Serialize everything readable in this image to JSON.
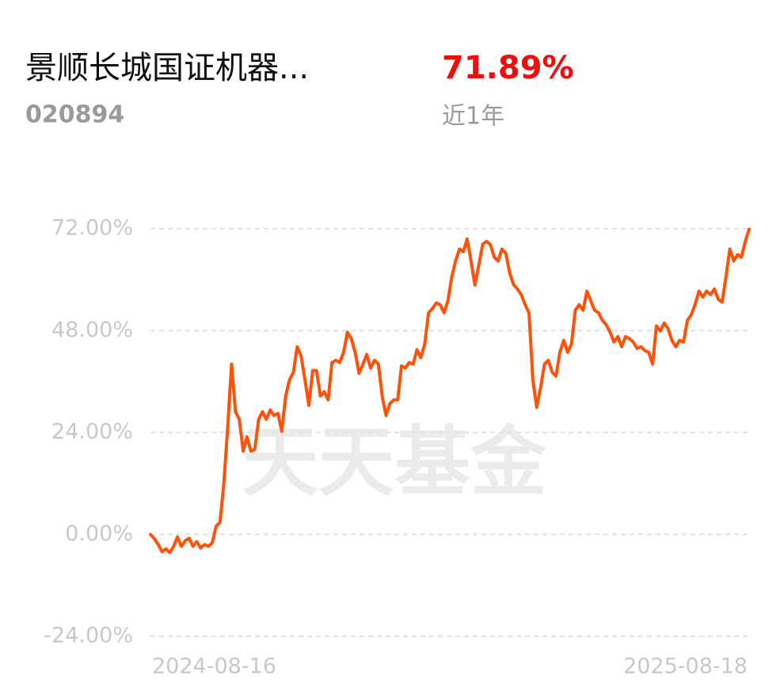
{
  "header": {
    "title": "景顺长城国证机器...",
    "code": "020894",
    "return": "71.89%",
    "period": "近1年"
  },
  "watermark": "天天基金",
  "chart_data": {
    "type": "line",
    "categories": [
      "2024-08-16",
      null,
      null,
      null,
      null,
      null,
      null,
      null,
      null,
      null,
      null,
      null,
      null,
      null,
      null,
      null,
      null,
      null,
      null,
      null,
      null,
      null,
      null,
      null,
      null,
      null,
      null,
      null,
      null,
      null,
      null,
      null,
      null,
      null,
      null,
      null,
      null,
      null,
      null,
      null,
      null,
      null,
      null,
      null,
      null,
      null,
      null,
      null,
      null,
      null,
      null,
      null,
      null,
      null,
      null,
      null,
      null,
      null,
      null,
      null,
      null,
      null,
      null,
      null,
      null,
      null,
      null,
      null,
      null,
      null,
      null,
      null,
      null,
      null,
      null,
      null,
      null,
      null,
      null,
      null,
      null,
      null,
      null,
      null,
      null,
      null,
      null,
      null,
      null,
      null,
      null,
      null,
      null,
      null,
      null,
      null,
      null,
      null,
      null,
      null,
      null,
      null,
      null,
      null,
      null,
      null,
      null,
      null,
      null,
      null,
      null,
      null,
      null,
      null,
      null,
      null,
      null,
      null,
      null,
      null,
      null,
      null,
      null,
      null,
      null,
      null,
      null,
      null,
      null,
      null,
      null,
      null,
      null,
      null,
      null,
      null,
      null,
      null,
      null,
      null,
      null,
      null,
      null,
      null,
      null,
      null,
      null,
      null,
      null,
      null,
      null,
      null,
      null,
      null,
      null,
      "2025-08-18"
    ],
    "series": [
      {
        "color": "#ff5208",
        "values": [
          0,
          -1,
          -2.4,
          -4.1,
          -3.4,
          -4.3,
          -2.8,
          -0.6,
          -2.8,
          -1.5,
          -0.9,
          -2.8,
          -1.7,
          -3.2,
          -2.4,
          -2.8,
          -2,
          1.9,
          2.8,
          12.1,
          25.2,
          40.1,
          28.9,
          27.1,
          19.6,
          23,
          19.6,
          20,
          27.1,
          28.9,
          27.1,
          29.3,
          28,
          28.5,
          24.3,
          32.6,
          36.4,
          38.2,
          44.2,
          42,
          36.4,
          30.4,
          38.6,
          38.6,
          32.6,
          33.6,
          31.7,
          40.5,
          41,
          40.5,
          42.9,
          47.6,
          46.1,
          42.9,
          37.9,
          40.1,
          42.4,
          39.2,
          41,
          40.1,
          32.6,
          28,
          30.8,
          31.7,
          31.7,
          39.7,
          39.2,
          40.5,
          40.1,
          43.5,
          41.6,
          44.8,
          52.2,
          53.2,
          54.5,
          54.1,
          52.2,
          55,
          60.6,
          64.4,
          67.2,
          66.6,
          69.6,
          64.4,
          58.7,
          63.4,
          68.3,
          69,
          68.3,
          65.3,
          64.4,
          67.2,
          66.2,
          61.6,
          58.8,
          57.8,
          56.5,
          54.1,
          52.2,
          36.4,
          29.9,
          34.5,
          40.1,
          41,
          38.2,
          37.3,
          42.9,
          45.7,
          42.9,
          44.8,
          52.8,
          54.1,
          52.8,
          57.3,
          55,
          52.8,
          52.2,
          50.4,
          49.4,
          47.6,
          45.3,
          46.6,
          44.2,
          46.6,
          46.1,
          45.3,
          43.8,
          44.2,
          43.3,
          42.9,
          40.1,
          49.1,
          47.9,
          49.8,
          48.5,
          45.7,
          44.2,
          45.7,
          45.3,
          50.4,
          51.7,
          54.1,
          57.3,
          55.9,
          57.3,
          56.5,
          57.8,
          55.4,
          54.7,
          60.6,
          67.2,
          64.4,
          65.9,
          65.3,
          69,
          71.89
        ]
      }
    ],
    "ylim": [
      -24,
      72
    ],
    "yticks": [
      {
        "value": -24,
        "label": "-24.00%"
      },
      {
        "value": 0,
        "label": "0.00%"
      },
      {
        "value": 24,
        "label": "24.00%"
      },
      {
        "value": 48,
        "label": "48.00%"
      },
      {
        "value": 72,
        "label": "72.00%"
      }
    ],
    "grid": true
  }
}
